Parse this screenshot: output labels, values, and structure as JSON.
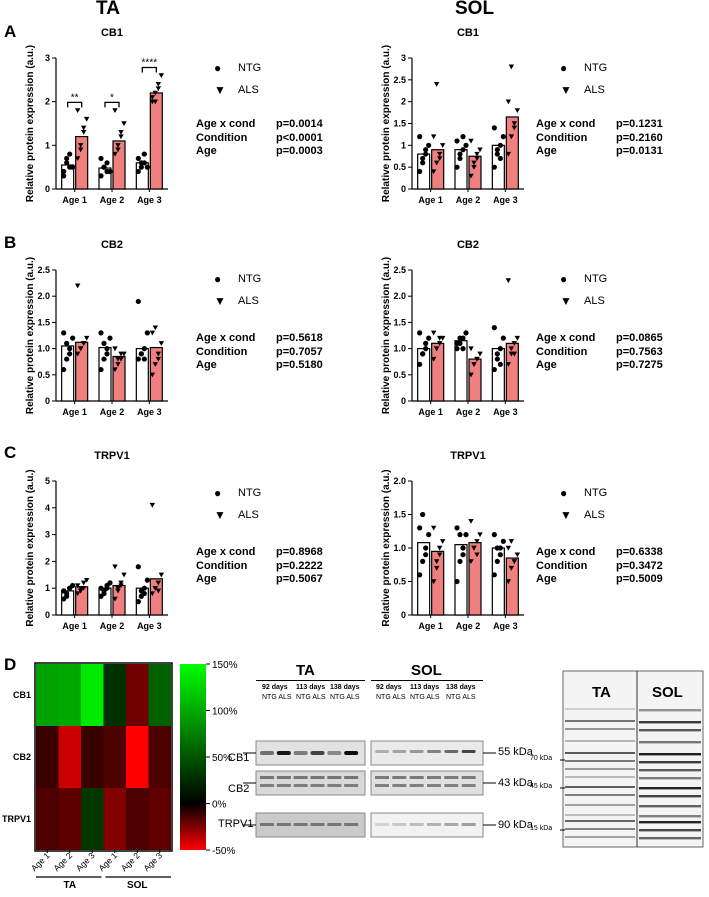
{
  "headers": {
    "ta": "TA",
    "sol": "SOL"
  },
  "panel_letters": {
    "a": "A",
    "b": "B",
    "c": "C",
    "d": "D"
  },
  "legend": {
    "ntg": "NTG",
    "als": "ALS",
    "ntg_symbol": "●",
    "als_symbol": "▼"
  },
  "colors": {
    "ntg_bar": "#ffffff",
    "als_bar": "#f08080",
    "heat_green": "#00ff00",
    "heat_red": "#ff0000"
  },
  "chart_data": [
    {
      "id": "ta_cb1",
      "type": "bar",
      "title": "CB1",
      "ylabel": "Relative protein expression (a.u.)",
      "categories": [
        "Age 1",
        "Age 2",
        "Age 3"
      ],
      "ylim": [
        0,
        3
      ],
      "yticks": [
        "0",
        "1",
        "2",
        "3"
      ],
      "series": [
        {
          "name": "NTG",
          "values": [
            0.55,
            0.48,
            0.6
          ]
        },
        {
          "name": "ALS",
          "values": [
            1.2,
            1.1,
            2.2
          ]
        }
      ],
      "points": {
        "NTG": [
          [
            0.3,
            0.6,
            0.8,
            0.5,
            0.4,
            0.7,
            0.5
          ],
          [
            0.3,
            0.5,
            0.6,
            0.4,
            0.7,
            0.5,
            0.4
          ],
          [
            0.4,
            0.6,
            0.8,
            0.5,
            0.7,
            0.5,
            0.6
          ]
        ],
        "ALS": [
          [
            0.7,
            1.0,
            1.3,
            1.6,
            1.8,
            0.9,
            1.4
          ],
          [
            0.8,
            1.0,
            1.2,
            1.5,
            1.8,
            0.9,
            1.3
          ],
          [
            2.0,
            2.2,
            2.4,
            2.6,
            2.1,
            2.0,
            2.3
          ]
        ]
      },
      "significance": [
        "**",
        "*",
        "****"
      ],
      "stats": [
        {
          "label": "Age x cond",
          "value": "p=0.0014"
        },
        {
          "label": "Condition",
          "value": "p<0.0001"
        },
        {
          "label": "Age",
          "value": "p=0.0003"
        }
      ]
    },
    {
      "id": "sol_cb1",
      "type": "bar",
      "title": "CB1",
      "ylabel": "Relative protein expression (a.u.)",
      "categories": [
        "Age 1",
        "Age 2",
        "Age 3"
      ],
      "ylim": [
        0,
        3
      ],
      "yticks": [
        "0",
        "0.5",
        "1",
        "1.5",
        "2",
        "2.5",
        "3"
      ],
      "series": [
        {
          "name": "NTG",
          "values": [
            0.8,
            0.9,
            1.0
          ]
        },
        {
          "name": "ALS",
          "values": [
            0.9,
            0.75,
            1.65
          ]
        }
      ],
      "points": {
        "NTG": [
          [
            0.4,
            0.6,
            0.8,
            1.0,
            1.2,
            0.7,
            0.9
          ],
          [
            0.5,
            0.7,
            0.9,
            1.0,
            1.1,
            0.8,
            1.2
          ],
          [
            0.5,
            0.8,
            1.0,
            1.2,
            1.4,
            0.9,
            0.7
          ]
        ],
        "ALS": [
          [
            0.4,
            0.6,
            0.8,
            1.0,
            1.2,
            2.4,
            0.7
          ],
          [
            0.3,
            0.5,
            0.7,
            0.9,
            1.1,
            0.6,
            0.8
          ],
          [
            0.8,
            1.2,
            1.5,
            1.8,
            2.0,
            2.8,
            1.4
          ]
        ]
      },
      "significance": [],
      "stats": [
        {
          "label": "Age x cond",
          "value": "p=0.1231"
        },
        {
          "label": "Condition",
          "value": "p=0.2160"
        },
        {
          "label": "Age",
          "value": "p=0.0131"
        }
      ]
    },
    {
      "id": "ta_cb2",
      "type": "bar",
      "title": "CB2",
      "ylabel": "Relative protein expression (a.u.)",
      "categories": [
        "Age 1",
        "Age 2",
        "Age 3"
      ],
      "ylim": [
        0,
        2.5
      ],
      "yticks": [
        "0",
        "0.5",
        "1.0",
        "1.5",
        "2.0",
        "2.5"
      ],
      "series": [
        {
          "name": "NTG",
          "values": [
            1.05,
            1.02,
            1.0
          ]
        },
        {
          "name": "ALS",
          "values": [
            1.12,
            0.85,
            1.02
          ]
        }
      ],
      "points": {
        "NTG": [
          [
            0.6,
            0.8,
            1.0,
            1.2,
            1.3,
            1.1,
            0.9
          ],
          [
            0.6,
            0.8,
            1.0,
            1.2,
            1.3,
            1.1,
            0.9
          ],
          [
            0.8,
            0.9,
            1.0,
            1.3,
            1.9,
            0.9,
            0.8
          ]
        ],
        "ALS": [
          [
            0.9,
            1.0,
            1.1,
            1.2,
            2.2,
            1.0,
            1.1
          ],
          [
            0.6,
            0.7,
            0.8,
            0.9,
            1.0,
            0.8,
            0.9
          ],
          [
            0.5,
            0.7,
            0.9,
            1.1,
            1.3,
            1.4,
            0.8
          ]
        ]
      },
      "significance": [],
      "stats": [
        {
          "label": "Age x cond",
          "value": "p=0.5618"
        },
        {
          "label": "Condition",
          "value": "p=0.7057"
        },
        {
          "label": "Age",
          "value": "p=0.5180"
        }
      ]
    },
    {
      "id": "sol_cb2",
      "type": "bar",
      "title": "CB2",
      "ylabel": "Relative protein expression (a.u.)",
      "categories": [
        "Age 1",
        "Age 2",
        "Age 3"
      ],
      "ylim": [
        0,
        2.5
      ],
      "yticks": [
        "0",
        "0.5",
        "1.0",
        "1.5",
        "2.0",
        "2.5"
      ],
      "series": [
        {
          "name": "NTG",
          "values": [
            1.0,
            1.15,
            1.0
          ]
        },
        {
          "name": "ALS",
          "values": [
            1.1,
            0.8,
            1.1
          ]
        }
      ],
      "points": {
        "NTG": [
          [
            0.7,
            0.9,
            1.0,
            1.2,
            1.3,
            0.9,
            1.1
          ],
          [
            1.0,
            1.1,
            1.2,
            1.3,
            1.1,
            1.2,
            1.0
          ],
          [
            0.6,
            0.8,
            1.0,
            1.2,
            1.4,
            0.9,
            0.7
          ]
        ],
        "ALS": [
          [
            0.8,
            1.0,
            1.1,
            1.2,
            1.3,
            1.0,
            1.2
          ],
          [
            0.5,
            0.7,
            0.8,
            0.9,
            1.0,
            0.7,
            0.8
          ],
          [
            0.7,
            0.9,
            1.1,
            1.2,
            2.3,
            1.0,
            0.9
          ]
        ]
      },
      "significance": [],
      "stats": [
        {
          "label": "Age x cond",
          "value": "p=0.0865"
        },
        {
          "label": "Condition",
          "value": "p=0.7563"
        },
        {
          "label": "Age",
          "value": "p=0.7275"
        }
      ]
    },
    {
      "id": "ta_trpv1",
      "type": "bar",
      "title": "TRPV1",
      "ylabel": "Relative protein expression (a.u.)",
      "categories": [
        "Age 1",
        "Age 2",
        "Age 3"
      ],
      "ylim": [
        0,
        5
      ],
      "yticks": [
        "0",
        "1",
        "2",
        "3",
        "4",
        "5"
      ],
      "series": [
        {
          "name": "NTG",
          "values": [
            0.9,
            1.0,
            1.0
          ]
        },
        {
          "name": "ALS",
          "values": [
            1.05,
            1.1,
            1.35
          ]
        }
      ],
      "points": {
        "NTG": [
          [
            0.6,
            0.8,
            1.0,
            1.1,
            0.9,
            0.7,
            1.0
          ],
          [
            0.7,
            0.9,
            1.1,
            1.2,
            1.0,
            0.8,
            1.0
          ],
          [
            0.5,
            0.7,
            1.0,
            1.3,
            1.8,
            0.9,
            0.8
          ]
        ],
        "ALS": [
          [
            0.8,
            1.0,
            1.2,
            1.3,
            1.1,
            0.9,
            1.0
          ],
          [
            0.6,
            0.9,
            1.2,
            1.5,
            1.8,
            1.0,
            1.1
          ],
          [
            0.8,
            1.0,
            1.2,
            1.5,
            4.1,
            1.0,
            0.9
          ]
        ]
      },
      "significance": [],
      "stats": [
        {
          "label": "Age x cond",
          "value": "p=0.8968"
        },
        {
          "label": "Condition",
          "value": "p=0.2222"
        },
        {
          "label": "Age",
          "value": "p=0.5067"
        }
      ]
    },
    {
      "id": "sol_trpv1",
      "type": "bar",
      "title": "TRPV1",
      "ylabel": "Relative protein expression (a.u.)",
      "categories": [
        "Age 1",
        "Age 2",
        "Age 3"
      ],
      "ylim": [
        0,
        2
      ],
      "yticks": [
        "0",
        "0.5",
        "1.0",
        "1.5",
        "2.0"
      ],
      "series": [
        {
          "name": "NTG",
          "values": [
            1.08,
            1.05,
            1.0
          ]
        },
        {
          "name": "ALS",
          "values": [
            0.95,
            1.08,
            0.85
          ]
        }
      ],
      "points": {
        "NTG": [
          [
            0.6,
            0.8,
            1.0,
            1.2,
            1.3,
            1.5,
            0.9
          ],
          [
            0.5,
            0.8,
            1.0,
            1.2,
            1.3,
            1.2,
            0.9
          ],
          [
            0.6,
            0.8,
            1.0,
            1.1,
            1.2,
            1.0,
            0.9
          ]
        ],
        "ALS": [
          [
            0.5,
            0.7,
            0.9,
            1.1,
            1.3,
            0.8,
            1.0
          ],
          [
            0.8,
            1.0,
            1.1,
            1.2,
            1.4,
            1.0,
            0.9
          ],
          [
            0.5,
            0.7,
            0.8,
            0.9,
            1.0,
            1.1,
            0.8
          ]
        ]
      },
      "significance": [],
      "stats": [
        {
          "label": "Age x cond",
          "value": "p=0.6338"
        },
        {
          "label": "Condition",
          "value": "p=0.3472"
        },
        {
          "label": "Age",
          "value": "p=0.5009"
        }
      ]
    },
    {
      "id": "heatmap",
      "type": "heatmap",
      "rows": [
        "CB1",
        "CB2",
        "TRPV1"
      ],
      "columns": [
        "Age 1",
        "Age 2",
        "Age 3",
        "Age 1",
        "Age 2",
        "Age 3"
      ],
      "groups": [
        "TA",
        "SOL"
      ],
      "values": [
        [
          85,
          90,
          135,
          5,
          -20,
          40
        ],
        [
          -5,
          -45,
          -5,
          -10,
          -100,
          -10
        ],
        [
          -10,
          -15,
          10,
          -25,
          -10,
          -15
        ]
      ],
      "colorbar": {
        "ticks": [
          "150%",
          "100%",
          "50%",
          "0%",
          "-50%"
        ],
        "min": -50,
        "max": 150
      }
    }
  ],
  "blot": {
    "groups": [
      "TA",
      "SOL"
    ],
    "ages": [
      "92 days",
      "113 days",
      "138 days"
    ],
    "conds": "NTG ALS",
    "proteins": [
      "CB1",
      "CB2",
      "TRPV1"
    ],
    "sizes": [
      "55 kDa",
      "43 kDa",
      "90 kDa"
    ]
  },
  "stain": {
    "groups": [
      "TA",
      "SOL"
    ],
    "markers": [
      "70 kDa",
      "45 kDa",
      "15 kDa"
    ]
  }
}
